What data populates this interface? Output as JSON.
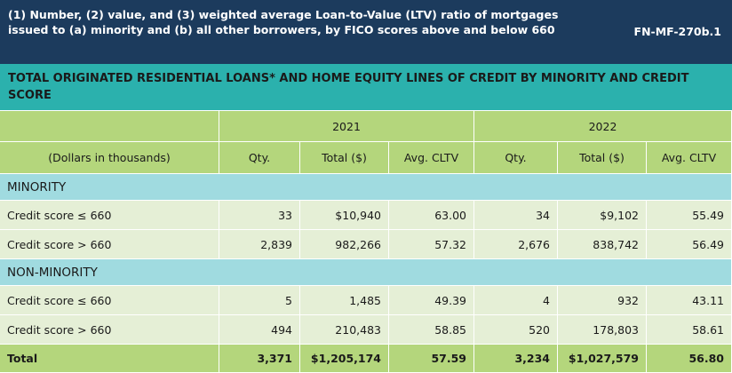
{
  "header": {
    "title": "(1) Number, (2) value, and (3) weighted average Loan-to-Value (LTV) ratio of mortgages issued to (a) minority and (b) all other borrowers, by FICO scores above and below 660",
    "code": "FN-MF-270b.1"
  },
  "table": {
    "title": "TOTAL ORIGINATED RESIDENTIAL LOANS* AND HOME EQUITY LINES OF CREDIT BY MINORITY AND CREDIT SCORE",
    "years": [
      "2021",
      "2022"
    ],
    "columns": [
      "(Dollars in thousands)",
      "Qty.",
      "Total ($)",
      "Avg. CLTV",
      "Qty.",
      "Total ($)",
      "Avg. CLTV"
    ],
    "sections": [
      {
        "name": "MINORITY",
        "rows": [
          [
            "Credit score ≤ 660",
            "33",
            "$10,940",
            "63.00",
            "34",
            "$9,102",
            "55.49"
          ],
          [
            "Credit score > 660",
            "2,839",
            "982,266",
            "57.32",
            "2,676",
            "838,742",
            "56.49"
          ]
        ]
      },
      {
        "name": "NON-MINORITY",
        "rows": [
          [
            "Credit score ≤ 660",
            "5",
            "1,485",
            "49.39",
            "4",
            "932",
            "43.11"
          ],
          [
            "Credit score > 660",
            "494",
            "210,483",
            "58.85",
            "520",
            "178,803",
            "58.61"
          ]
        ]
      }
    ],
    "total": [
      "Total",
      "3,371",
      "$1,205,174",
      "57.59",
      "3,234",
      "$1,027,579",
      "56.80"
    ]
  }
}
